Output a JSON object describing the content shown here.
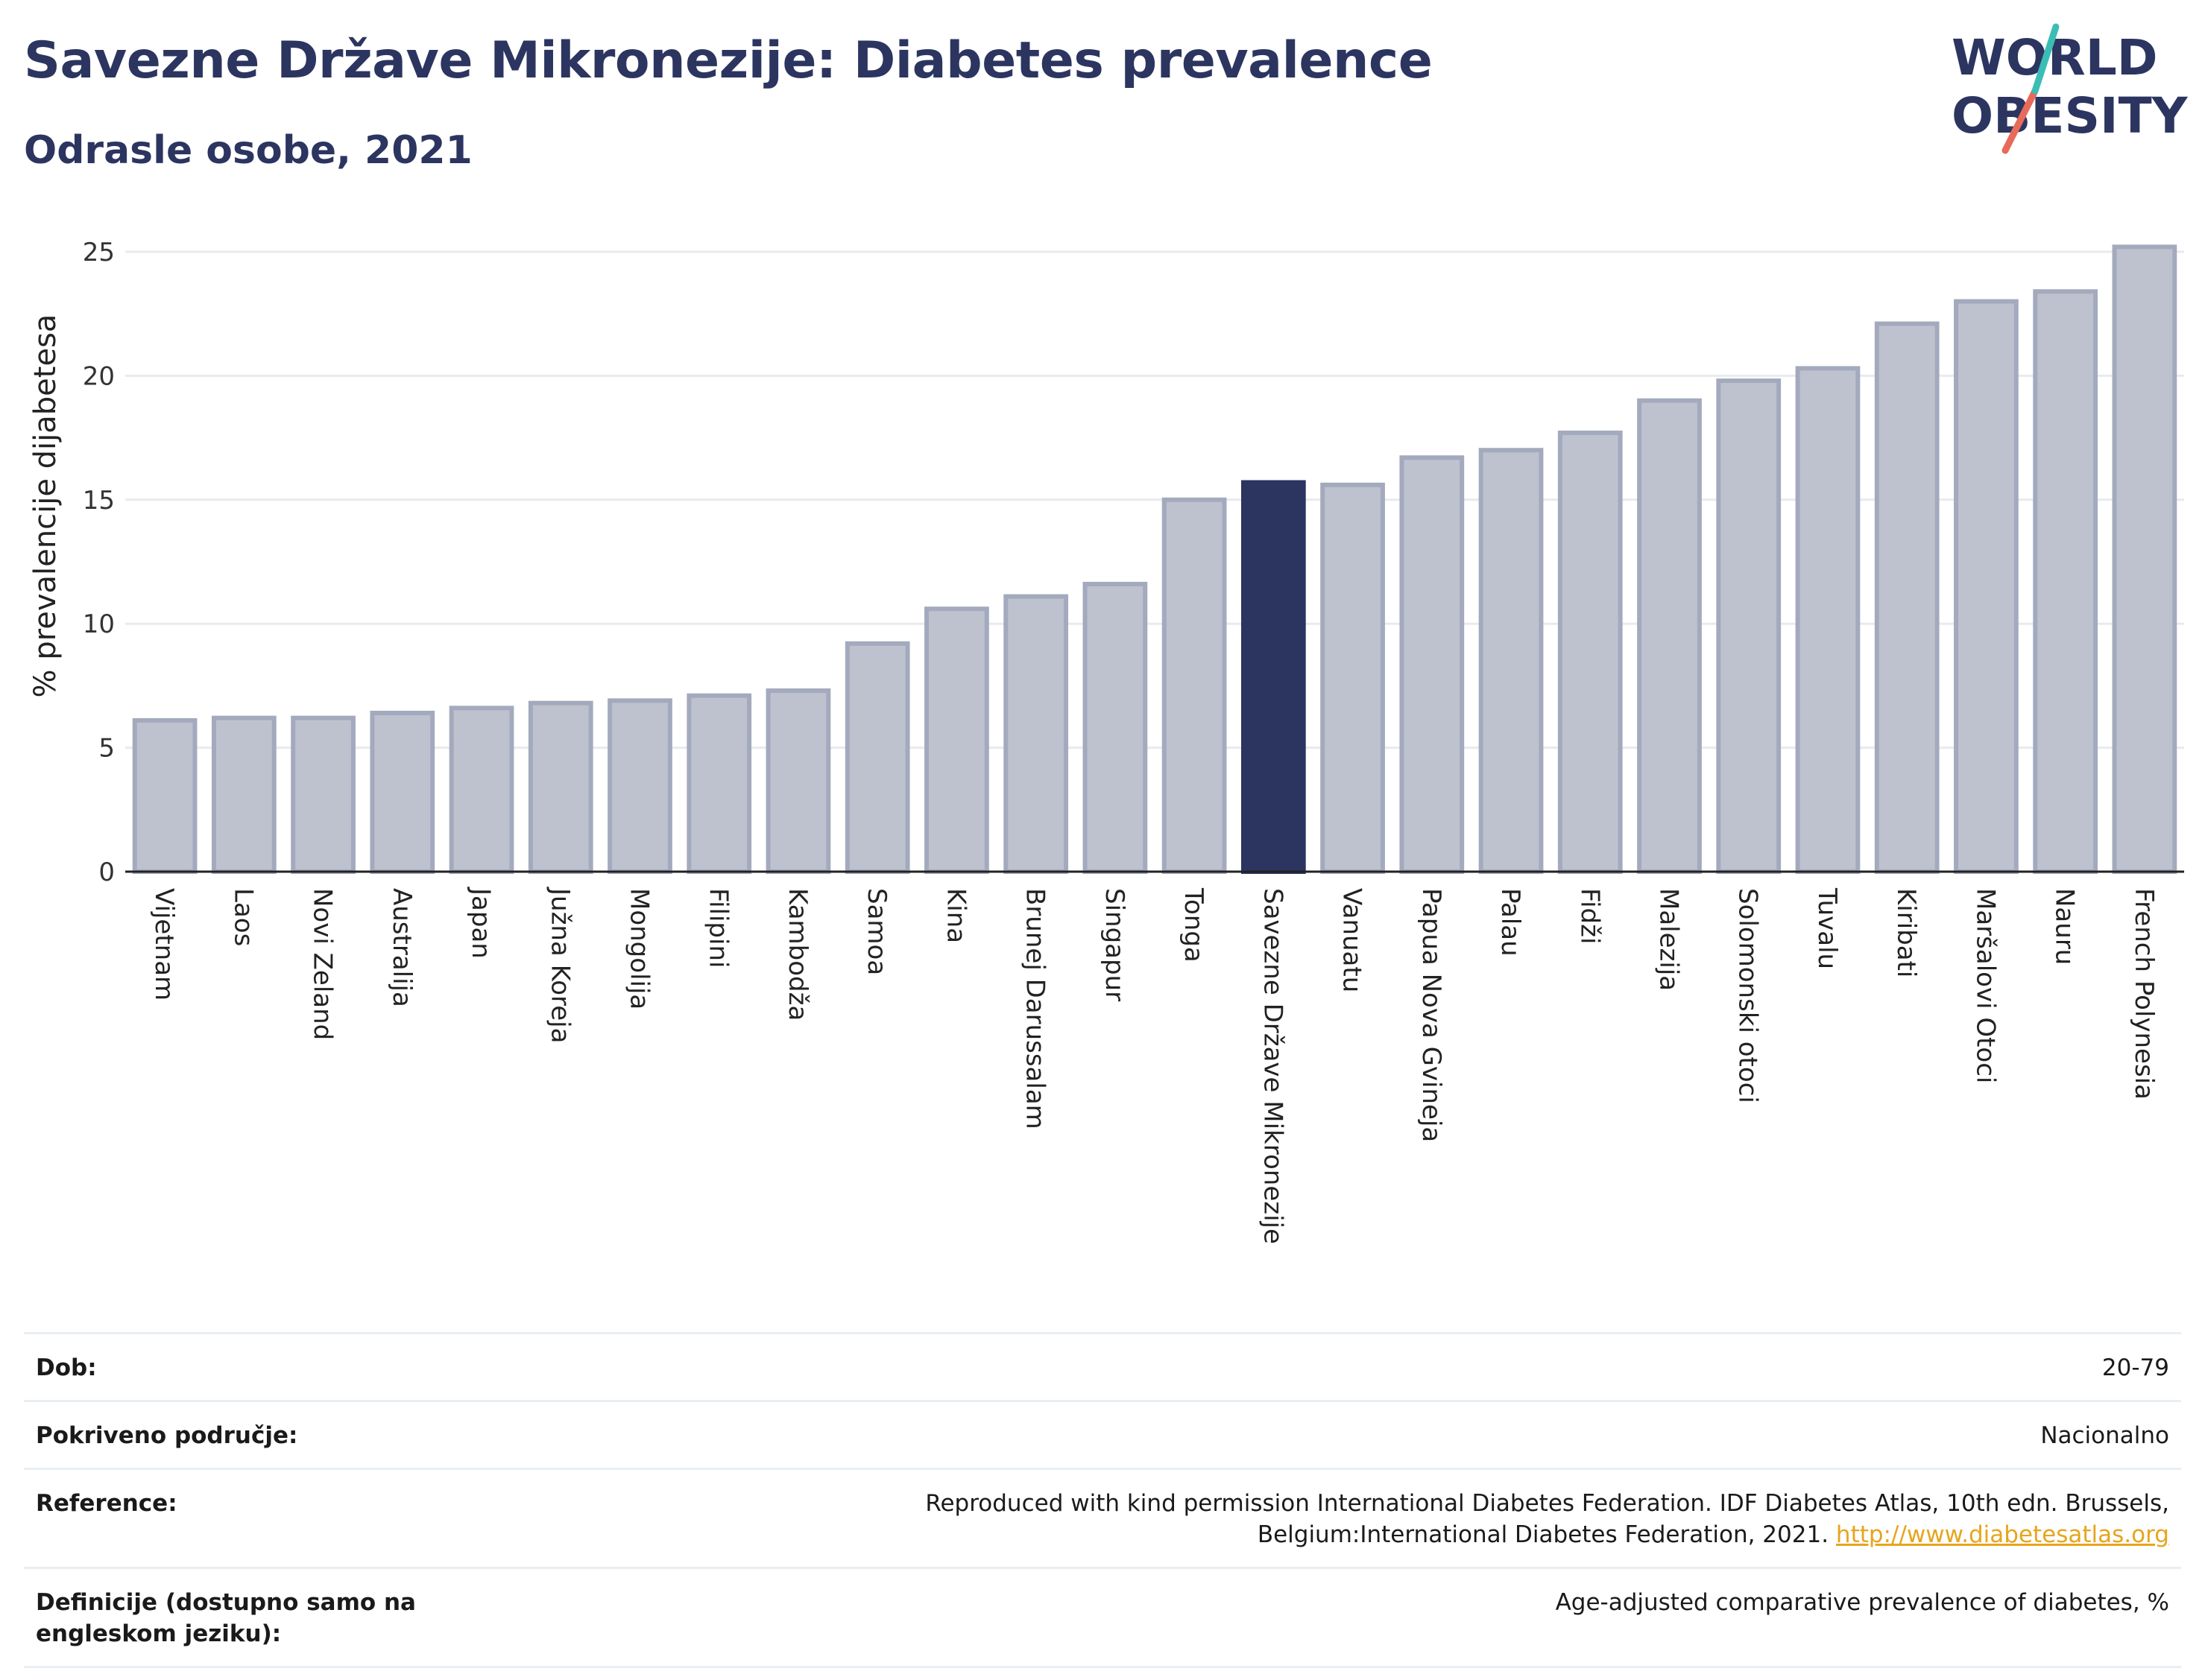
{
  "header": {
    "title": "Savezne Države Mikronezije: Diabetes prevalence",
    "subtitle": "Odrasle osobe, 2021"
  },
  "logo": {
    "line1": "WORLD",
    "line2": "OBESITY",
    "colors": {
      "text": "#2c3560",
      "slash_teal": "#3bbdb5",
      "slash_red": "#e76a5a"
    }
  },
  "chart_data": {
    "type": "bar",
    "ylabel": "% prevalencije dijabetesa",
    "ylim": [
      0,
      25
    ],
    "yticks": [
      0,
      5,
      10,
      15,
      20,
      25
    ],
    "grid": true,
    "highlight_category": "Savezne Države Mikronezije",
    "colors": {
      "bar": "#bec2cf",
      "bar_edge": "#a4aabd",
      "highlight": "#2c3560"
    },
    "categories": [
      "Vijetnam",
      "Laos",
      "Novi Zeland",
      "Australija",
      "Japan",
      "Južna Koreja",
      "Mongolija",
      "Filipini",
      "Kambodža",
      "Samoa",
      "Kina",
      "Brunej Darussalam",
      "Singapur",
      "Tonga",
      "Savezne Države Mikronezije",
      "Vanuatu",
      "Papua Nova Gvineja",
      "Palau",
      "Fidži",
      "Malezija",
      "Solomonski otoci",
      "Tuvalu",
      "Kiribati",
      "Maršalovi Otoci",
      "Nauru",
      "French Polynesia"
    ],
    "values": [
      6.1,
      6.2,
      6.2,
      6.4,
      6.6,
      6.8,
      6.9,
      7.1,
      7.3,
      9.2,
      10.6,
      11.1,
      11.6,
      15.0,
      15.7,
      15.6,
      16.7,
      17.0,
      17.7,
      19.0,
      19.8,
      20.3,
      22.1,
      23.0,
      23.4,
      25.2
    ]
  },
  "meta": {
    "age_label": "Dob:",
    "age_value": "20-79",
    "coverage_label": "Pokriveno područje:",
    "coverage_value": "Nacionalno",
    "reference_label": "Reference:",
    "reference_text": "Reproduced with kind permission International Diabetes Federation.  IDF Diabetes Atlas, 10th edn. Brussels, Belgium:International Diabetes Federation, 2021.",
    "reference_link": "http://www.diabetesatlas.org",
    "definition_label": "Definicije (dostupno samo na engleskom jeziku):",
    "definition_value": "Age-adjusted comparative prevalence of diabetes, %"
  }
}
